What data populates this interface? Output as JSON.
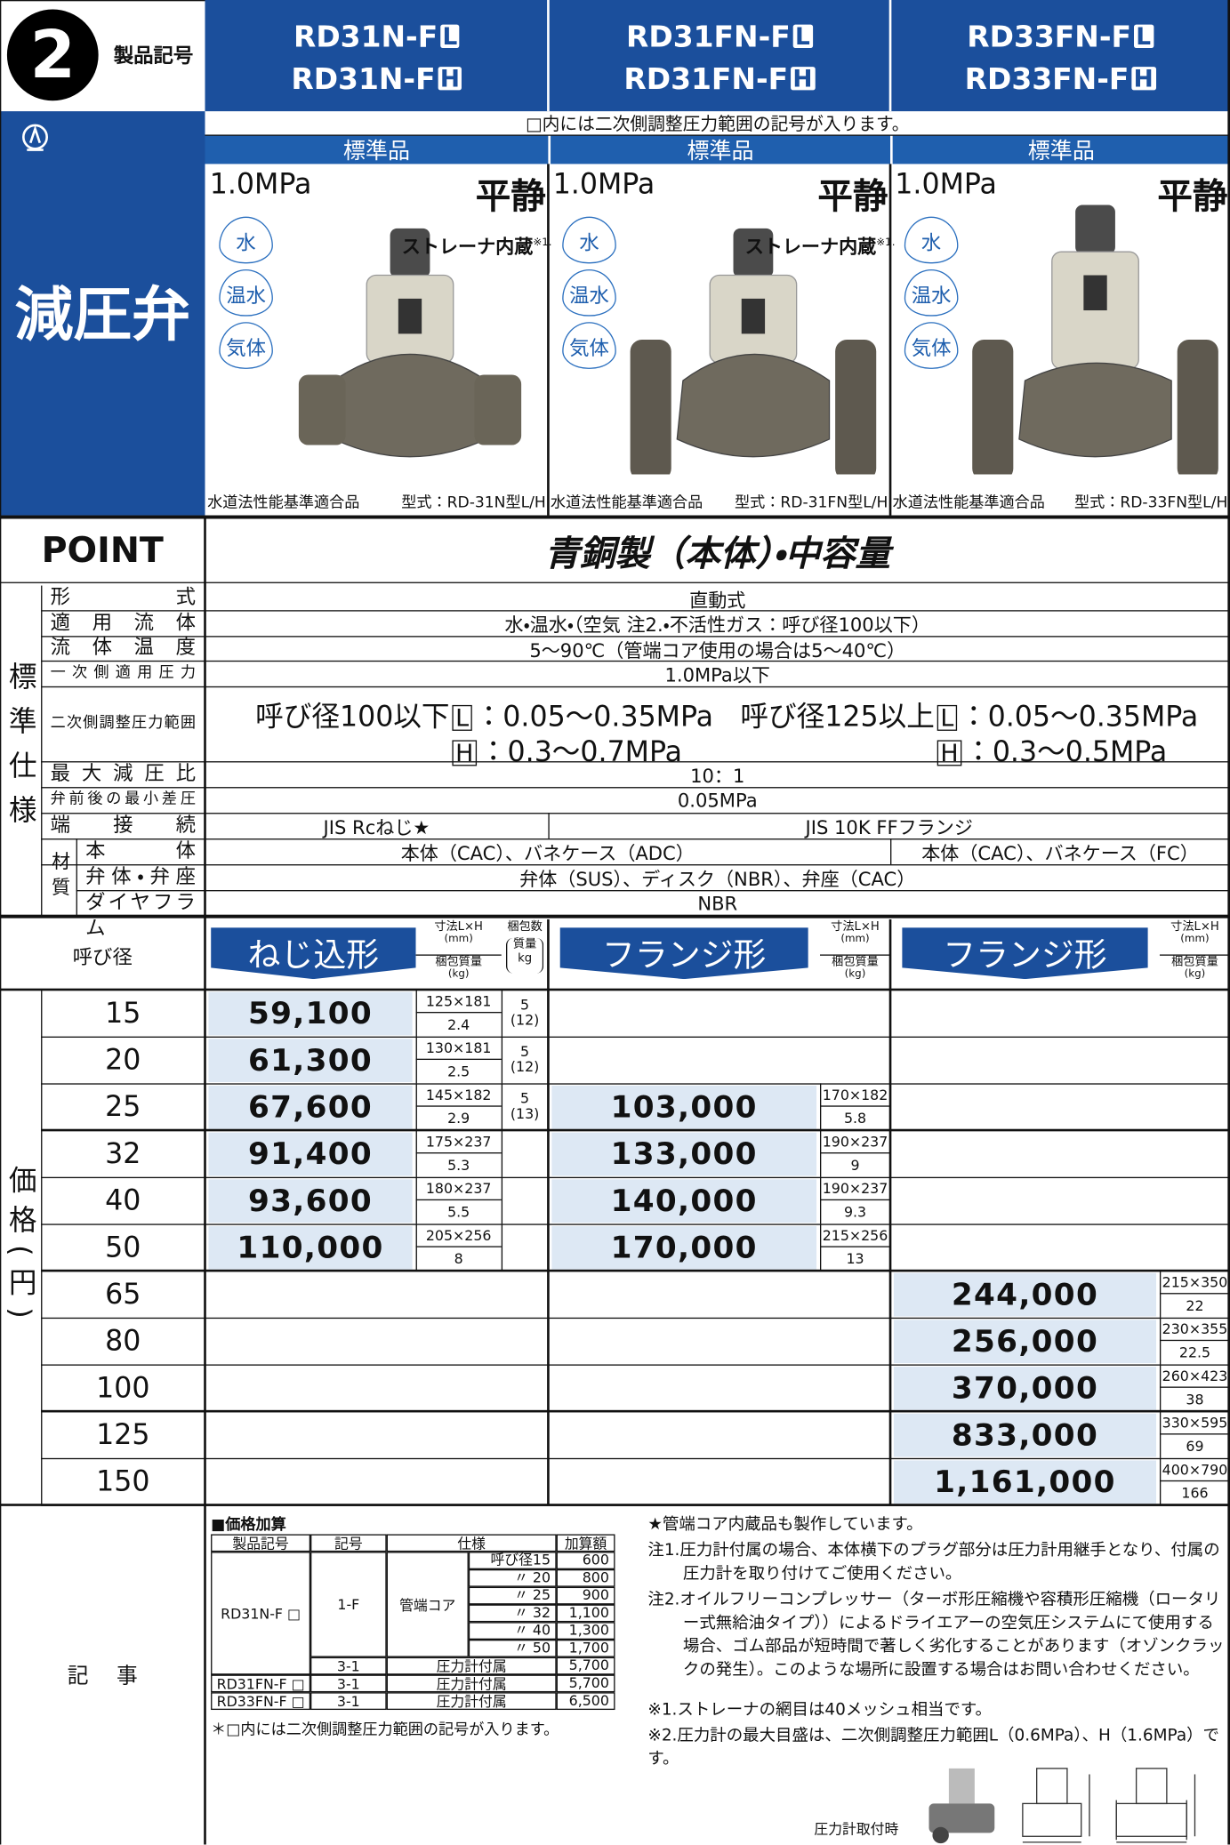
{
  "header": {
    "number": "2",
    "label": "製品記号",
    "models": [
      {
        "name": "RD31N-F",
        "l": "L",
        "h": "H"
      },
      {
        "name": "RD31FN-F",
        "l": "L",
        "h": "H"
      },
      {
        "name": "RD33FN-F",
        "l": "L",
        "h": "H"
      }
    ],
    "note": "□内には二次側調整圧力範囲の記号が入ります。",
    "standard": [
      "標準品",
      "標準品",
      "標準品"
    ]
  },
  "side_title": "減圧弁",
  "product_common": {
    "pressure": "1.0MPa",
    "mark": "平静",
    "media": [
      "水",
      "温水",
      "気体"
    ],
    "cert": "水道法性能基準適合品"
  },
  "products": [
    {
      "strainer": "ストレーナ内蔵",
      "strainer_note": "※1.",
      "model": "型式：RD-31N型L/H"
    },
    {
      "strainer": "ストレーナ内蔵",
      "strainer_note": "※1.",
      "model": "型式：RD-31FN型L/H"
    },
    {
      "model": "型式：RD-33FN型L/H"
    }
  ],
  "point": {
    "label": "POINT",
    "text": "青銅製（本体）・中容量"
  },
  "spec": {
    "group": "標準仕様",
    "material": "材質",
    "rows": [
      {
        "label": "形式",
        "value": "直動式"
      },
      {
        "label": "適用流体",
        "value": "水・温水・（空気 注2.・不活性ガス：呼び径100以下）"
      },
      {
        "label": "流体温度",
        "value": "5～90℃（管端コア使用の場合は5～40℃）"
      },
      {
        "label": "一次側適用圧力",
        "value": "1.0MPa以下"
      },
      {
        "label": "二次側調整圧力範囲",
        "ranges": [
          {
            "size": "呼び径100以下",
            "l": "L",
            "lv": "：0.05～0.35MPa",
            "h": "H",
            "hv": "：0.3～0.7MPa"
          },
          {
            "size": "呼び径125以上",
            "l": "L",
            "lv": "：0.05～0.35MPa",
            "h": "H",
            "hv": "：0.3～0.5MPa"
          }
        ]
      },
      {
        "label": "最大減圧比",
        "value": "10：1"
      },
      {
        "label": "弁前後の最小差圧",
        "value": "0.05MPa"
      },
      {
        "label": "端接続",
        "values": [
          "JIS Rcねじ★",
          "JIS 10K FFフランジ"
        ]
      },
      {
        "label": "本体",
        "values": [
          "本体（CAC）、バネケース（ADC）",
          "本体（CAC）、バネケース（FC）"
        ]
      },
      {
        "label": "弁体・弁座",
        "value": "弁体（SUS）、ディスク（NBR）、弁座（CAC）"
      },
      {
        "label": "ダイヤフラム",
        "value": "NBR"
      }
    ]
  },
  "price": {
    "group": "価格(円)",
    "size": "呼び径",
    "types": [
      "ねじ込形",
      "フランジ形",
      "フランジ形"
    ],
    "dim": "寸法L×H",
    "dim_unit": "(mm)",
    "weight": "梱包質量",
    "weight_unit": "(kg)",
    "pack": "梱包数",
    "pack_weight": "質量",
    "pack_unit": "kg",
    "rows": [
      {
        "size": "15",
        "screw": {
          "price": "59,100",
          "dim": "125×181",
          "weight": "2.4",
          "pack": "5",
          "pack_weight": "(12)"
        }
      },
      {
        "size": "20",
        "screw": {
          "price": "61,300",
          "dim": "130×181",
          "weight": "2.5",
          "pack": "5",
          "pack_weight": "(12)"
        }
      },
      {
        "size": "25",
        "screw": {
          "price": "67,600",
          "dim": "145×182",
          "weight": "2.9",
          "pack": "5",
          "pack_weight": "(13)"
        },
        "flange": {
          "price": "103,000",
          "dim": "170×182",
          "weight": "5.8"
        }
      },
      {
        "size": "32",
        "screw": {
          "price": "91,400",
          "dim": "175×237",
          "weight": "5.3"
        },
        "flange": {
          "price": "133,000",
          "dim": "190×237",
          "weight": "9"
        }
      },
      {
        "size": "40",
        "screw": {
          "price": "93,600",
          "dim": "180×237",
          "weight": "5.5"
        },
        "flange": {
          "price": "140,000",
          "dim": "190×237",
          "weight": "9.3"
        }
      },
      {
        "size": "50",
        "screw": {
          "price": "110,000",
          "dim": "205×256",
          "weight": "8"
        },
        "flange": {
          "price": "170,000",
          "dim": "215×256",
          "weight": "13"
        }
      },
      {
        "size": "65",
        "flange_large": {
          "price": "244,000",
          "dim": "215×350",
          "weight": "22"
        }
      },
      {
        "size": "80",
        "flange_large": {
          "price": "256,000",
          "dim": "230×355",
          "weight": "22.5"
        }
      },
      {
        "size": "100",
        "flange_large": {
          "price": "370,000",
          "dim": "260×423",
          "weight": "38"
        }
      },
      {
        "size": "125",
        "flange_large": {
          "price": "833,000",
          "dim": "330×595",
          "weight": "69"
        }
      },
      {
        "size": "150",
        "flange_large": {
          "price": "1,161,000",
          "dim": "400×790",
          "weight": "166"
        }
      }
    ]
  },
  "notes": {
    "label": "記事",
    "addition": {
      "title": "■価格加算",
      "headers": [
        "製品記号",
        "記号",
        "仕様",
        "加算額"
      ],
      "groups": [
        {
          "product": "RD31N-F □",
          "items": [
            {
              "code": "1-F",
              "spec": "管端コア",
              "sizes": [
                {
                  "size": "呼び径15",
                  "amount": "600"
                },
                {
                  "size": "〃 20",
                  "amount": "800"
                },
                {
                  "size": "〃 25",
                  "amount": "900"
                },
                {
                  "size": "〃 32",
                  "amount": "1,100"
                },
                {
                  "size": "〃 40",
                  "amount": "1,300"
                },
                {
                  "size": "〃 50",
                  "amount": "1,700"
                }
              ]
            },
            {
              "code": "3-1",
              "spec": "圧力計付属",
              "amount": "5,700"
            }
          ]
        },
        {
          "product": "RD31FN-F □",
          "items": [
            {
              "code": "3-1",
              "spec": "圧力計付属",
              "amount": "5,700"
            }
          ]
        },
        {
          "product": "RD33FN-F □",
          "items": [
            {
              "code": "3-1",
              "spec": "圧力計付属",
              "amount": "6,500"
            }
          ]
        }
      ],
      "footnote": "＊□内には二次側調整圧力範囲の記号が入ります。"
    },
    "items": [
      "★管端コア内蔵品も製作しています。",
      "注1.圧力計付属の場合、本体横下のプラグ部分は圧力計用継手となり、付属の圧力計を取り付けてご使用ください。",
      "注2.オイルフリーコンプレッサー（ターボ形圧縮機や容積形圧縮機（ロータリー式無給油タイプ））によるドライエアーの空気圧システムにて使用する場合、ゴム部品が短時間で著しく劣化することがあります（オゾンクラックの発生）。このような場所に設置する場合はお問い合わせください。",
      "※1.ストレーナの網目は40メッシュ相当です。",
      "※2.圧力計の最大目盛は、二次側調整圧力範囲L（0.6MPa）、H（1.6MPa）です。"
    ],
    "caption": "圧力計取付時"
  }
}
